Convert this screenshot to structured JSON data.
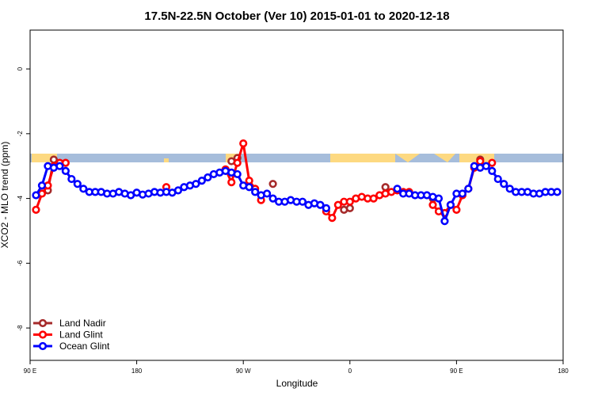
{
  "chart_data": {
    "type": "line",
    "title": "17.5N-22.5N October (Ver 10)   2015-01-01 to 2020-12-18",
    "xlabel": "Longitude",
    "ylabel": "XCO2 - MLO trend (ppm)",
    "xlim": [
      90,
      540
    ],
    "ylim": [
      -9,
      1.2
    ],
    "xticks": [
      {
        "value": 90,
        "label": "90 E"
      },
      {
        "value": 180,
        "label": "180"
      },
      {
        "value": 270,
        "label": "90 W"
      },
      {
        "value": 360,
        "label": "0"
      },
      {
        "value": 450,
        "label": "90 E"
      },
      {
        "value": 540,
        "label": "180"
      }
    ],
    "yticks": [
      0,
      -2,
      -4,
      -6,
      -8
    ],
    "legend": "bottom-left",
    "x": [
      95,
      100,
      105,
      110,
      115,
      120,
      125,
      130,
      135,
      140,
      145,
      150,
      155,
      160,
      165,
      170,
      175,
      180,
      185,
      190,
      195,
      200,
      205,
      210,
      215,
      220,
      225,
      230,
      235,
      240,
      245,
      250,
      255,
      260,
      265,
      270,
      275,
      280,
      285,
      290,
      295,
      300,
      305,
      310,
      315,
      320,
      325,
      330,
      335,
      340,
      345,
      350,
      355,
      360,
      365,
      370,
      375,
      380,
      385,
      390,
      395,
      400,
      405,
      410,
      415,
      420,
      425,
      430,
      435,
      440,
      445,
      450,
      455,
      460,
      465,
      470,
      475,
      480,
      485,
      490,
      495,
      500,
      505,
      510,
      515,
      520,
      525,
      530,
      535
    ],
    "series": [
      {
        "name": "Land Nadir",
        "color": "#a52a2a",
        "values": [
          null,
          null,
          -3.75,
          -2.8,
          null,
          null,
          null,
          null,
          null,
          null,
          null,
          null,
          null,
          null,
          null,
          null,
          null,
          null,
          null,
          null,
          null,
          null,
          null,
          null,
          null,
          null,
          null,
          null,
          null,
          null,
          null,
          null,
          null,
          -2.85,
          -2.75,
          null,
          null,
          null,
          null,
          null,
          -3.55,
          null,
          null,
          null,
          null,
          null,
          null,
          null,
          null,
          null,
          null,
          null,
          -4.35,
          -4.3,
          null,
          null,
          null,
          null,
          null,
          -3.65,
          null,
          null,
          null,
          null,
          null,
          null,
          null,
          -4.0,
          null,
          null,
          null,
          null,
          null,
          null,
          null,
          -2.8,
          null,
          null,
          null,
          null,
          null,
          null,
          null,
          null,
          null,
          null,
          null,
          null,
          null
        ]
      },
      {
        "name": "Land Glint",
        "color": "#ff0000",
        "values": [
          -4.35,
          -3.85,
          -3.6,
          -3.0,
          -2.9,
          -2.9,
          null,
          null,
          null,
          null,
          null,
          null,
          null,
          null,
          null,
          null,
          null,
          null,
          null,
          null,
          null,
          null,
          -3.65,
          null,
          null,
          null,
          null,
          null,
          null,
          null,
          null,
          null,
          -3.1,
          -3.5,
          -2.9,
          -2.3,
          -3.45,
          -3.7,
          -4.05,
          null,
          null,
          null,
          null,
          null,
          null,
          null,
          null,
          null,
          null,
          -4.4,
          -4.6,
          -4.2,
          -4.1,
          -4.1,
          -4.0,
          -3.95,
          -4.0,
          -4.0,
          -3.9,
          -3.85,
          -3.8,
          -3.75,
          -3.8,
          -3.8,
          null,
          null,
          null,
          -4.2,
          -4.4,
          -4.45,
          -4.2,
          -4.35,
          -3.9,
          -3.7,
          -3.05,
          -2.85,
          null,
          -2.9,
          null,
          null,
          null,
          null,
          null,
          null,
          null,
          null,
          null,
          null,
          null
        ]
      },
      {
        "name": "Ocean Glint",
        "color": "#0000ff",
        "values": [
          -3.9,
          -3.6,
          -3.0,
          -3.05,
          -3.0,
          -3.15,
          -3.4,
          -3.55,
          -3.7,
          -3.8,
          -3.8,
          -3.8,
          -3.85,
          -3.85,
          -3.8,
          -3.85,
          -3.9,
          -3.82,
          -3.88,
          -3.85,
          -3.8,
          -3.82,
          -3.8,
          -3.82,
          -3.75,
          -3.65,
          -3.6,
          -3.55,
          -3.45,
          -3.35,
          -3.25,
          -3.2,
          -3.15,
          -3.2,
          -3.25,
          -3.6,
          -3.65,
          -3.8,
          -3.9,
          -3.85,
          -4.0,
          -4.1,
          -4.1,
          -4.05,
          -4.1,
          -4.1,
          -4.2,
          -4.15,
          -4.2,
          -4.3,
          null,
          null,
          null,
          null,
          null,
          null,
          null,
          null,
          null,
          null,
          null,
          -3.7,
          -3.85,
          -3.85,
          -3.9,
          -3.9,
          -3.9,
          -3.95,
          -4.0,
          -4.7,
          -4.2,
          -3.85,
          -3.85,
          -3.7,
          -3.0,
          -3.05,
          -3.0,
          -3.15,
          -3.4,
          -3.55,
          -3.7,
          -3.8,
          -3.8,
          -3.8,
          -3.85,
          -3.85,
          -3.8,
          -3.8,
          -3.8
        ]
      }
    ]
  }
}
